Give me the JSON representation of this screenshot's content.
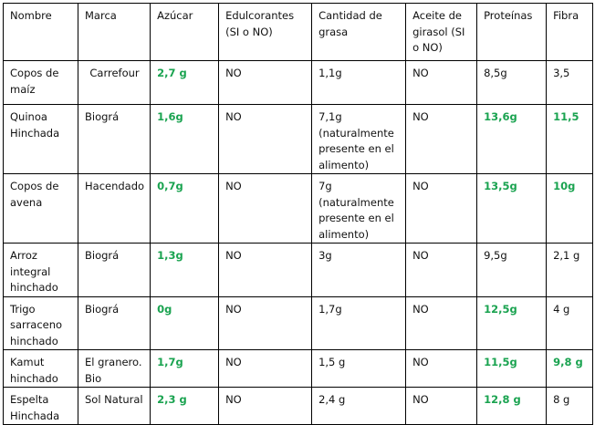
{
  "table": {
    "header": [
      "Nombre",
      "Marca",
      "Azúcar",
      "Edulcorantes (SI o NO)",
      "Cantidad de grasa",
      "Aceite de girasol (SI o NO)",
      "Proteínas",
      "Fibra"
    ],
    "rows": [
      [
        "Copos de maíz",
        "Carrefour",
        "2,7 g",
        "NO",
        "1,1g",
        "NO",
        "8,5g",
        "3,5"
      ],
      [
        "Quinoa Hinchada",
        "Biográ",
        "1,6g",
        "NO",
        "7,1g (naturalmente presente en el alimento)",
        "NO",
        "13,6g",
        "11,5"
      ],
      [
        "Copos de avena",
        "Hacendado",
        "0,7g",
        "NO",
        "7g (naturalmente presente en el alimento)",
        "NO",
        "13,5g",
        "10g"
      ],
      [
        "Arroz integral hinchado",
        "Biográ",
        "1,3g",
        "NO",
        "3g",
        "NO",
        "9,5g",
        "2,1 g"
      ],
      [
        "Trigo sarraceno hinchado",
        "Biográ",
        "0g",
        "NO",
        "1,7g",
        "NO",
        "12,5g",
        "4 g"
      ],
      [
        "Kamut hinchado",
        "El granero. Bio",
        "1,7g",
        "NO",
        "1,5 g",
        "NO",
        "11,5g",
        "9,8 g"
      ],
      [
        "Espelta Hinchada",
        "Sol Natural",
        "2,3 g",
        "NO",
        "2,4 g",
        "NO",
        "12,8 g",
        "8 g"
      ]
    ]
  }
}
